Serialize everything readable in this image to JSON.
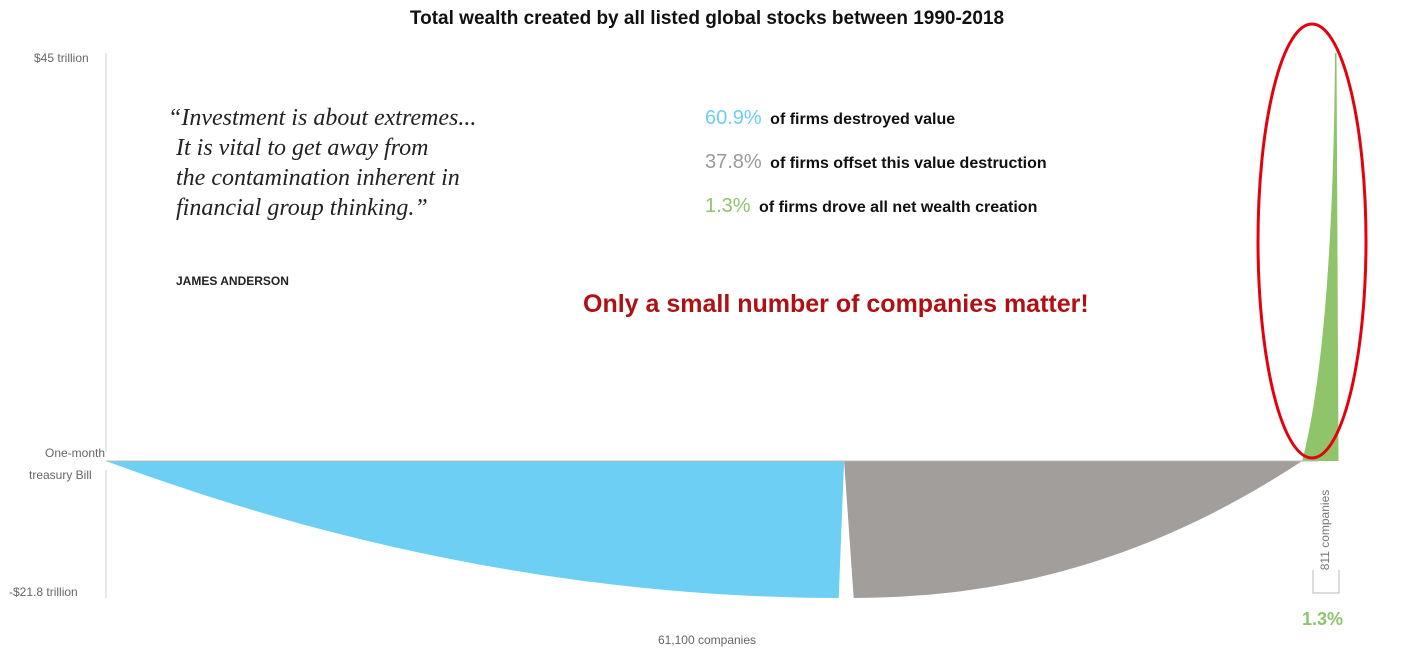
{
  "title": "Total wealth created by all listed global stocks between 1990-2018",
  "axis": {
    "top_label": "$45 trillion",
    "baseline_label_line1": "One-month",
    "baseline_label_line2": "treasury Bill",
    "bottom_label": "-$21.8 trillion",
    "x_label": "61,100 companies"
  },
  "quote": {
    "lines": [
      "“Investment is about extremes...",
      "It is vital to get away from",
      "the contamination inherent in",
      "financial group thinking.”"
    ],
    "author": "JAMES ANDERSON"
  },
  "stats": [
    {
      "pct": "60.9%",
      "text": "of firms destroyed value",
      "color": "#6dcff3"
    },
    {
      "pct": "37.8%",
      "text": "of firms offset this value destruction",
      "color": "#9a9a9a"
    },
    {
      "pct": "1.3%",
      "text": "of firms drove all net wealth creation",
      "color": "#8fc46a"
    }
  ],
  "callout": "Only a small number of companies matter!",
  "winners": {
    "count_label": "811 companies",
    "pct_label": "1.3%"
  },
  "colors": {
    "destroyers": "#6dcff3",
    "offsetters": "#a19e9c",
    "creators": "#8fc46a",
    "highlight": "#e3000f",
    "callout_text": "#b01014"
  },
  "chart_data": {
    "type": "area",
    "ylim": [
      -21.8,
      45
    ],
    "y_unit": "trillion USD",
    "total_companies": 61100,
    "segments": [
      {
        "share_pct": 60.9,
        "color": "#6dcff3"
      },
      {
        "share_pct": 37.8,
        "color": "#a19e9c"
      },
      {
        "share_pct": 1.3,
        "companies": 811,
        "color": "#8fc46a"
      }
    ]
  }
}
